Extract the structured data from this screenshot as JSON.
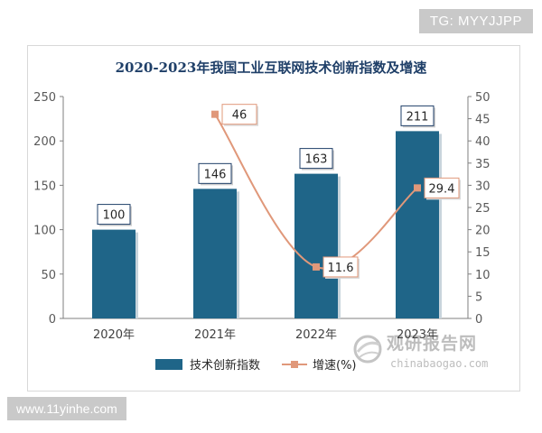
{
  "badges": {
    "top_right": "TG: MYYJJPP",
    "bottom_left": "www.11yinhe.com"
  },
  "watermark": {
    "cn": "观研报告网",
    "en": "chinabaogao.com"
  },
  "colors": {
    "bar": "#1f6588",
    "line": "#e0987a",
    "title": "#1f3f68",
    "axis": "#595959"
  },
  "chart_data": {
    "type": "bar+line",
    "title": "2020-2023年我国工业互联网技术创新指数及增速",
    "categories": [
      "2020年",
      "2021年",
      "2022年",
      "2023年"
    ],
    "series": [
      {
        "name": "技术创新指数",
        "type": "bar",
        "axis": "left",
        "values": [
          100,
          146,
          163,
          211
        ],
        "labels": [
          "100",
          "146",
          "163",
          "211"
        ]
      },
      {
        "name": "增速(%)",
        "type": "line",
        "axis": "right",
        "values": [
          null,
          46,
          11.6,
          29.4
        ],
        "labels": [
          "",
          "46",
          "11.6",
          "29.4"
        ]
      }
    ],
    "y_left": {
      "min": 0,
      "max": 250,
      "ticks": [
        0,
        50,
        100,
        150,
        200,
        250
      ]
    },
    "y_right": {
      "min": 0,
      "max": 50,
      "ticks": [
        0,
        5,
        10,
        15,
        20,
        25,
        30,
        35,
        40,
        45,
        50
      ]
    },
    "legend": {
      "position": "bottom",
      "items": [
        "技术创新指数",
        "增速(%)"
      ]
    },
    "grid": false
  }
}
